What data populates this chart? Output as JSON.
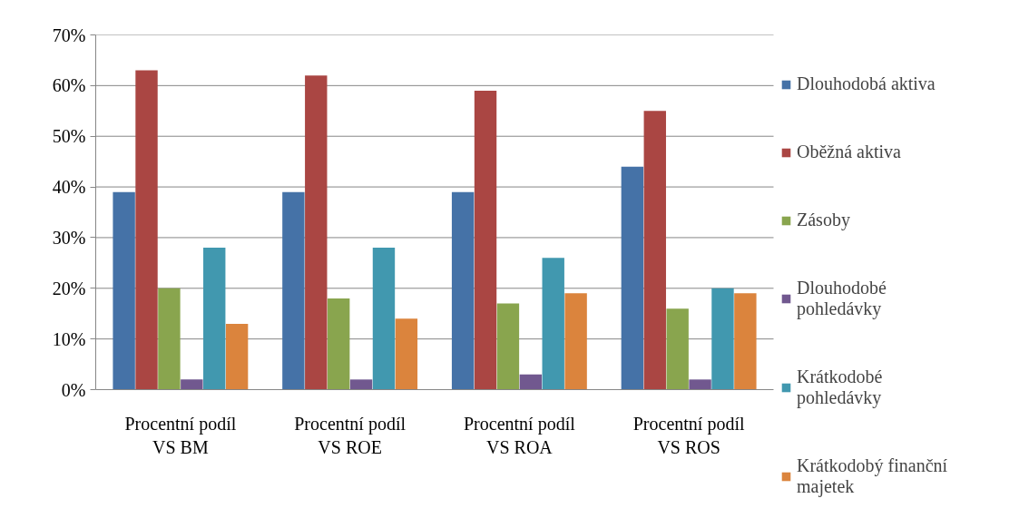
{
  "chart_data": {
    "type": "bar",
    "categories": [
      "Procentní podíl VS BM",
      "Procentní podíl VS ROE",
      "Procentní podíl VS ROA",
      "Procentní podíl VS ROS"
    ],
    "series": [
      {
        "name": "Dlouhodobá aktiva",
        "color": "#4572a7",
        "values": [
          39,
          39,
          39,
          44
        ]
      },
      {
        "name": "Oběžná aktiva",
        "color": "#aa4643",
        "values": [
          63,
          62,
          59,
          55
        ]
      },
      {
        "name": "Zásoby",
        "color": "#89a54e",
        "values": [
          20,
          18,
          17,
          16
        ]
      },
      {
        "name": "Dlouhodobé pohledávky",
        "color": "#71588f",
        "values": [
          2,
          2,
          3,
          2
        ]
      },
      {
        "name": "Krátkodobé pohledávky",
        "color": "#4198af",
        "values": [
          28,
          28,
          26,
          20
        ]
      },
      {
        "name": "Krátkodobý finanční majetek",
        "color": "#db843d",
        "values": [
          13,
          14,
          19,
          19
        ]
      }
    ],
    "ylim": [
      0,
      70
    ],
    "yticks": [
      {
        "value": 0,
        "label": "0%"
      },
      {
        "value": 10,
        "label": "10%"
      },
      {
        "value": 20,
        "label": "20%"
      },
      {
        "value": 30,
        "label": "30%"
      },
      {
        "value": 40,
        "label": "40%"
      },
      {
        "value": 50,
        "label": "50%"
      },
      {
        "value": 60,
        "label": "60%"
      },
      {
        "value": 70,
        "label": "70%"
      }
    ],
    "grid": "y",
    "legend": "right"
  }
}
